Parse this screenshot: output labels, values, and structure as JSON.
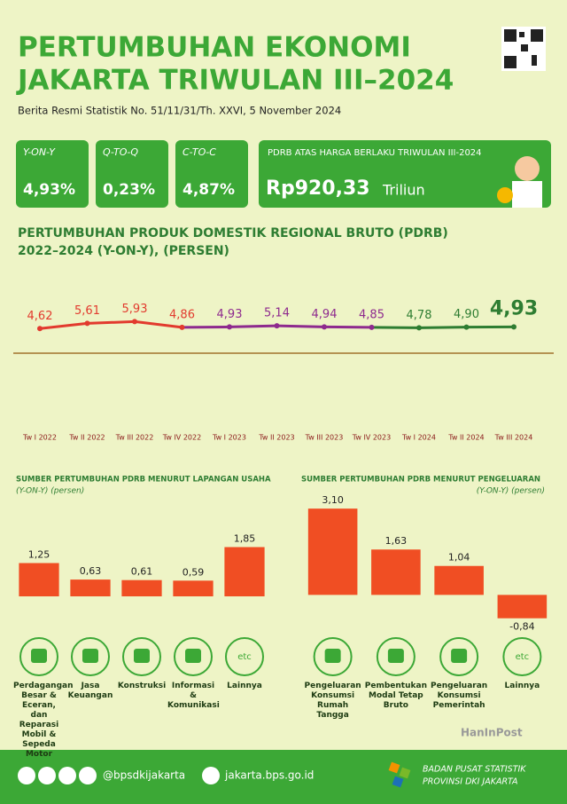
{
  "header": {
    "title_line1": "PERTUMBUHAN EKONOMI",
    "title_line2": "JAKARTA TRIWULAN III–2024",
    "subtitle": "Berita Resmi Statistik No. 51/11/31/Th. XXVI, 5 November 2024"
  },
  "summary": {
    "boxes": [
      {
        "label": "Y-ON-Y",
        "value": "4,93%"
      },
      {
        "label": "Q-TO-Q",
        "value": "0,23%"
      },
      {
        "label": "C-TO-C",
        "value": "4,87%"
      }
    ],
    "pdrb": {
      "label": "PDRB ATAS HARGA BERLAKU TRIWULAN III-2024",
      "value": "Rp920,33",
      "unit": "Triliun"
    }
  },
  "chart_data": [
    {
      "type": "line",
      "title": "PERTUMBUHAN PRODUK DOMESTIK REGIONAL BRUTO (PDRB)",
      "subtitle": "2022–2024 (Y-ON-Y), (PERSEN)",
      "categories": [
        "Tw I 2022",
        "Tw II 2022",
        "Tw III 2022",
        "Tw IV 2022",
        "Tw I 2023",
        "Tw II 2023",
        "Tw III 2023",
        "Tw IV 2023",
        "Tw I 2024",
        "Tw II 2024",
        "Tw III 2024"
      ],
      "values": [
        4.62,
        5.61,
        5.93,
        4.86,
        4.93,
        5.14,
        4.94,
        4.85,
        4.78,
        4.9,
        4.93
      ],
      "value_labels": [
        "4,62",
        "5,61",
        "5,93",
        "4,86",
        "4,93",
        "5,14",
        "4,94",
        "4,85",
        "4,78",
        "4,90",
        "4,93"
      ],
      "colors": [
        "#e23a2e",
        "#e23a2e",
        "#e23a2e",
        "#e23a2e",
        "#8e2a8e",
        "#8e2a8e",
        "#8e2a8e",
        "#8e2a8e",
        "#2e7d32",
        "#2e7d32",
        "#2e7d32"
      ],
      "ylim": [
        0,
        10
      ]
    },
    {
      "type": "bar",
      "title": "SUMBER PERTUMBUHAN PDRB MENURUT LAPANGAN USAHA",
      "subtitle": "(Y-ON-Y) (persen)",
      "categories": [
        "Perdagangan Besar & Eceran, dan Reparasi Mobil & Sepeda Motor",
        "Jasa Keuangan",
        "Konstruksi",
        "Informasi & Komunikasi",
        "Lainnya"
      ],
      "values": [
        1.25,
        0.63,
        0.61,
        0.59,
        1.85
      ],
      "value_labels": [
        "1,25",
        "0,63",
        "0,61",
        "0,59",
        "1,85"
      ],
      "color": "#f04e23",
      "ylim": [
        0,
        2
      ],
      "other_icon_label": "etc"
    },
    {
      "type": "bar",
      "title": "SUMBER PERTUMBUHAN PDRB MENURUT PENGELUARAN",
      "subtitle": "(Y-ON-Y) (persen)",
      "categories": [
        "Pengeluaran Konsumsi Rumah Tangga",
        "Pembentukan Modal Tetap Bruto",
        "Pengeluaran Konsumsi Pemerintah",
        "Lainnya"
      ],
      "values": [
        3.1,
        1.63,
        1.04,
        -0.84
      ],
      "value_labels": [
        "3,10",
        "1,63",
        "1,04",
        "-0,84"
      ],
      "color": "#f04e23",
      "ylim": [
        -1.2,
        3.2
      ],
      "other_icon_label": "etc"
    }
  ],
  "footer": {
    "social": "@bpsdkijakarta",
    "website": "jakarta.bps.go.id",
    "org_line1": "BADAN PUSAT STATISTIK",
    "org_line2": "PROVINSI DKI JAKARTA"
  },
  "watermark": "HanInPost"
}
